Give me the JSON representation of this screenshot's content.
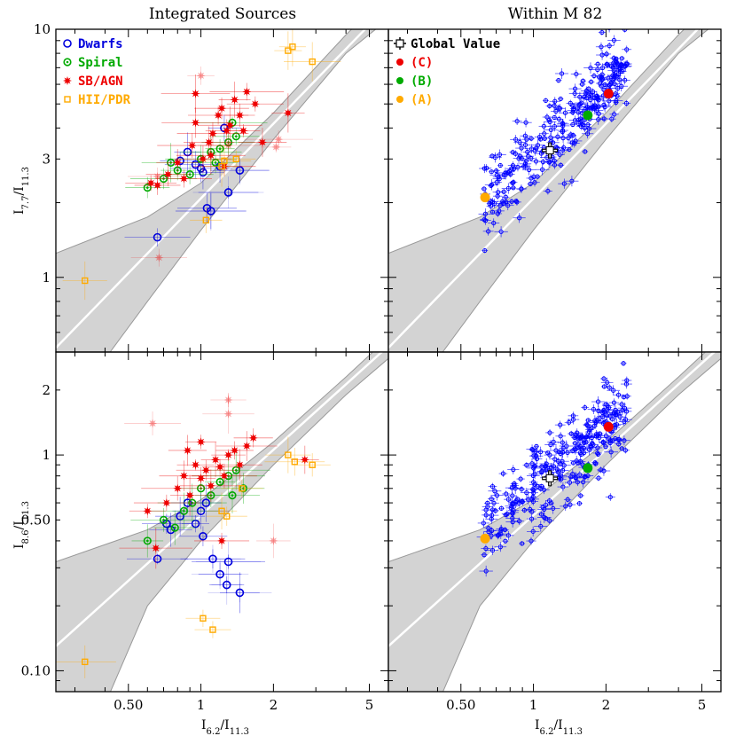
{
  "chart_data": [
    {
      "type": "scatter",
      "title": "Integrated Sources",
      "xlabel": "",
      "ylabel": "I7.7/I11.3",
      "x_scale": "log",
      "y_scale": "log",
      "xlim": [
        0.25,
        6.0
      ],
      "ylim": [
        0.5,
        10.0
      ],
      "x_ticks": [],
      "y_ticks": [
        {
          "value": 1,
          "label": "1"
        },
        {
          "value": 3,
          "label": "3"
        },
        {
          "value": 10,
          "label": "10"
        }
      ],
      "band": {
        "center": [
          [
            0.25,
            0.52
          ],
          [
            6.0,
            12.5
          ]
        ],
        "upper": [
          [
            0.25,
            1.25
          ],
          [
            0.6,
            1.75
          ],
          [
            1.0,
            2.4
          ],
          [
            2.0,
            4.6
          ],
          [
            4.0,
            9.5
          ],
          [
            6.0,
            14.0
          ]
        ],
        "lower": [
          [
            0.42,
            0.5
          ],
          [
            0.6,
            0.8
          ],
          [
            1.0,
            1.55
          ],
          [
            2.0,
            3.6
          ],
          [
            4.0,
            8.0
          ],
          [
            6.0,
            11.0
          ]
        ]
      },
      "legend": {
        "position": "top-left",
        "entries": [
          {
            "label": "Dwarfs",
            "color": "#0000dd",
            "marker": "open-circle"
          },
          {
            "label": "Spiral",
            "color": "#00aa00",
            "marker": "circle-dot"
          },
          {
            "label": "SB/AGN",
            "color": "#ee0000",
            "marker": "star"
          },
          {
            "label": "HII/PDR",
            "color": "#ffaa00",
            "marker": "open-square"
          }
        ]
      },
      "series": [
        {
          "name": "Dwarfs",
          "color": "#0000dd",
          "marker": "open-circle",
          "points": [
            [
              0.88,
              3.2
            ],
            [
              0.82,
              2.95
            ],
            [
              0.95,
              2.85
            ],
            [
              1.02,
              2.65
            ],
            [
              1.0,
              2.75
            ],
            [
              1.06,
              1.9
            ],
            [
              0.66,
              1.45
            ],
            [
              1.2,
              2.8
            ],
            [
              1.3,
              2.2
            ],
            [
              1.45,
              2.7
            ],
            [
              1.1,
              1.85
            ],
            [
              1.25,
              4.0
            ]
          ],
          "faint": [
            [
              1.3,
              2.2
            ],
            [
              1.45,
              2.7
            ],
            [
              1.1,
              1.85
            ]
          ]
        },
        {
          "name": "Spiral",
          "color": "#00aa00",
          "marker": "circle-dot",
          "points": [
            [
              0.6,
              2.3
            ],
            [
              0.7,
              2.5
            ],
            [
              0.8,
              2.7
            ],
            [
              0.9,
              2.6
            ],
            [
              1.0,
              3.0
            ],
            [
              1.1,
              3.2
            ],
            [
              1.2,
              3.3
            ],
            [
              1.3,
              3.5
            ],
            [
              1.4,
              3.7
            ],
            [
              1.35,
              4.2
            ],
            [
              1.15,
              2.9
            ],
            [
              0.75,
              2.9
            ]
          ]
        },
        {
          "name": "SB/AGN",
          "color": "#ee0000",
          "marker": "star",
          "points": [
            [
              0.62,
              2.4
            ],
            [
              0.66,
              2.35
            ],
            [
              0.73,
              2.6
            ],
            [
              0.8,
              2.9
            ],
            [
              0.85,
              2.5
            ],
            [
              0.92,
              3.4
            ],
            [
              0.95,
              4.2
            ],
            [
              1.02,
              3.0
            ],
            [
              1.08,
              3.5
            ],
            [
              1.12,
              3.8
            ],
            [
              1.18,
              4.5
            ],
            [
              1.22,
              4.8
            ],
            [
              1.28,
              3.9
            ],
            [
              1.32,
              4.1
            ],
            [
              1.38,
              5.2
            ],
            [
              1.45,
              4.5
            ],
            [
              1.5,
              3.9
            ],
            [
              1.55,
              5.6
            ],
            [
              1.68,
              5.0
            ],
            [
              1.8,
              3.5
            ],
            [
              2.3,
              4.6
            ],
            [
              0.95,
              5.5
            ],
            [
              1.1,
              3.1
            ],
            [
              1.25,
              2.8
            ]
          ],
          "faint": [
            [
              1.0,
              6.5
            ],
            [
              2.05,
              3.35
            ],
            [
              0.67,
              1.2
            ],
            [
              1.3,
              3.4
            ],
            [
              0.66,
              2.55
            ],
            [
              2.1,
              3.6
            ]
          ]
        },
        {
          "name": "HII/PDR",
          "color": "#ffaa00",
          "marker": "open-square",
          "points": [
            [
              0.33,
              0.97
            ],
            [
              1.05,
              1.7
            ],
            [
              2.4,
              8.5
            ],
            [
              2.9,
              7.4
            ],
            [
              2.3,
              8.2
            ],
            [
              1.22,
              2.8
            ],
            [
              1.25,
              2.95
            ],
            [
              1.4,
              3.0
            ]
          ]
        }
      ]
    },
    {
      "type": "scatter",
      "title": "Within M 82",
      "xlabel": "",
      "ylabel": "",
      "x_scale": "log",
      "y_scale": "log",
      "xlim": [
        0.25,
        6.0
      ],
      "ylim": [
        0.5,
        10.0
      ],
      "band": {
        "center": [
          [
            0.25,
            0.52
          ],
          [
            6.0,
            12.5
          ]
        ],
        "upper": [
          [
            0.25,
            1.25
          ],
          [
            0.6,
            1.75
          ],
          [
            1.0,
            2.4
          ],
          [
            2.0,
            4.6
          ],
          [
            4.0,
            9.5
          ],
          [
            6.0,
            14.0
          ]
        ],
        "lower": [
          [
            0.42,
            0.5
          ],
          [
            0.6,
            0.8
          ],
          [
            1.0,
            1.55
          ],
          [
            2.0,
            3.6
          ],
          [
            4.0,
            8.0
          ],
          [
            6.0,
            11.0
          ]
        ]
      },
      "legend": {
        "position": "top-left",
        "entries": [
          {
            "label": "Global Value",
            "color": "#000000",
            "marker": "open-square"
          },
          {
            "label": "(C)",
            "color": "#ee0000",
            "marker": "filled-circle"
          },
          {
            "label": "(B)",
            "color": "#00aa00",
            "marker": "filled-circle"
          },
          {
            "label": "(A)",
            "color": "#ffaa00",
            "marker": "filled-circle"
          }
        ]
      },
      "cloud": {
        "color": "#0000ff",
        "x_range": [
          0.62,
          2.45
        ],
        "center_line": [
          [
            0.62,
            2.1
          ],
          [
            1.0,
            3.0
          ],
          [
            1.5,
            4.5
          ],
          [
            2.0,
            5.8
          ],
          [
            2.4,
            7.2
          ]
        ],
        "scatter": 0.16,
        "count": 300
      },
      "highlights": [
        {
          "label": "Global Value",
          "x": 1.17,
          "y": 3.25,
          "color": "#000000"
        },
        {
          "label": "(C)",
          "x": 2.05,
          "y": 5.5,
          "color": "#ee0000"
        },
        {
          "label": "(B)",
          "x": 1.68,
          "y": 4.5,
          "color": "#00aa00"
        },
        {
          "label": "(A)",
          "x": 0.63,
          "y": 2.1,
          "color": "#ffaa00"
        }
      ]
    },
    {
      "type": "scatter",
      "title": "",
      "xlabel": "I6.2/I11.3",
      "ylabel": "I8.6/I11.3",
      "x_scale": "log",
      "y_scale": "log",
      "xlim": [
        0.25,
        6.0
      ],
      "ylim": [
        0.08,
        3.0
      ],
      "x_ticks": [
        {
          "value": 0.5,
          "label": "0.50"
        },
        {
          "value": 1,
          "label": "1"
        },
        {
          "value": 2,
          "label": "2"
        },
        {
          "value": 5,
          "label": "5"
        }
      ],
      "y_ticks": [
        {
          "value": 0.1,
          "label": "0.10"
        },
        {
          "value": 0.5,
          "label": "0.50"
        },
        {
          "value": 1,
          "label": "1"
        },
        {
          "value": 2,
          "label": "2"
        }
      ],
      "band": {
        "center": [
          [
            0.25,
            0.13
          ],
          [
            6.0,
            3.2
          ]
        ],
        "upper": [
          [
            0.25,
            0.32
          ],
          [
            0.6,
            0.45
          ],
          [
            1.0,
            0.62
          ],
          [
            2.0,
            1.15
          ],
          [
            4.0,
            2.3
          ],
          [
            6.0,
            3.5
          ]
        ],
        "lower": [
          [
            0.4,
            0.07
          ],
          [
            0.6,
            0.2
          ],
          [
            1.0,
            0.4
          ],
          [
            2.0,
            0.9
          ],
          [
            4.0,
            1.9
          ],
          [
            6.0,
            2.8
          ]
        ]
      },
      "series": [
        {
          "name": "Dwarfs",
          "color": "#0000dd",
          "marker": "open-circle",
          "points": [
            [
              0.66,
              0.33
            ],
            [
              0.75,
              0.45
            ],
            [
              0.82,
              0.52
            ],
            [
              0.88,
              0.6
            ],
            [
              0.95,
              0.48
            ],
            [
              1.0,
              0.55
            ],
            [
              1.05,
              0.6
            ],
            [
              1.02,
              0.42
            ],
            [
              0.72,
              0.48
            ],
            [
              1.12,
              0.33
            ],
            [
              1.2,
              0.28
            ],
            [
              1.28,
              0.25
            ],
            [
              1.45,
              0.23
            ],
            [
              1.3,
              0.32
            ]
          ],
          "faint": [
            [
              1.12,
              0.33
            ],
            [
              1.2,
              0.28
            ],
            [
              1.28,
              0.25
            ],
            [
              1.45,
              0.23
            ],
            [
              1.3,
              0.32
            ]
          ]
        },
        {
          "name": "Spiral",
          "color": "#00aa00",
          "marker": "circle-dot",
          "points": [
            [
              0.6,
              0.4
            ],
            [
              0.7,
              0.5
            ],
            [
              0.78,
              0.46
            ],
            [
              0.85,
              0.55
            ],
            [
              0.92,
              0.6
            ],
            [
              1.0,
              0.7
            ],
            [
              1.1,
              0.65
            ],
            [
              1.2,
              0.75
            ],
            [
              1.3,
              0.8
            ],
            [
              1.4,
              0.85
            ],
            [
              1.5,
              0.7
            ],
            [
              1.35,
              0.65
            ]
          ]
        },
        {
          "name": "SB/AGN",
          "color": "#ee0000",
          "marker": "star",
          "points": [
            [
              0.6,
              0.55
            ],
            [
              0.65,
              0.37
            ],
            [
              0.72,
              0.6
            ],
            [
              0.8,
              0.7
            ],
            [
              0.85,
              0.8
            ],
            [
              0.9,
              0.65
            ],
            [
              0.95,
              0.9
            ],
            [
              1.0,
              0.78
            ],
            [
              1.05,
              0.85
            ],
            [
              1.1,
              0.72
            ],
            [
              1.15,
              0.95
            ],
            [
              1.2,
              0.88
            ],
            [
              1.25,
              0.8
            ],
            [
              1.3,
              1.0
            ],
            [
              1.38,
              1.05
            ],
            [
              1.45,
              0.9
            ],
            [
              1.55,
              1.1
            ],
            [
              1.65,
              1.2
            ],
            [
              0.88,
              1.05
            ],
            [
              1.0,
              1.15
            ],
            [
              2.7,
              0.95
            ],
            [
              1.22,
              0.4
            ]
          ],
          "faint": [
            [
              0.63,
              1.4
            ],
            [
              1.3,
              1.8
            ],
            [
              2.0,
              0.4
            ],
            [
              1.3,
              1.55
            ]
          ]
        },
        {
          "name": "HII/PDR",
          "color": "#ffaa00",
          "marker": "open-square",
          "points": [
            [
              0.33,
              0.11
            ],
            [
              1.02,
              0.175
            ],
            [
              1.12,
              0.155
            ],
            [
              2.3,
              1.0
            ],
            [
              2.9,
              0.9
            ],
            [
              2.45,
              0.93
            ],
            [
              1.22,
              0.55
            ],
            [
              1.28,
              0.52
            ],
            [
              1.48,
              0.7
            ]
          ]
        }
      ]
    },
    {
      "type": "scatter",
      "title": "",
      "xlabel": "I6.2/I11.3",
      "ylabel": "",
      "x_scale": "log",
      "y_scale": "log",
      "xlim": [
        0.25,
        6.0
      ],
      "ylim": [
        0.08,
        3.0
      ],
      "x_ticks": [
        {
          "value": 0.5,
          "label": "0.50"
        },
        {
          "value": 1,
          "label": "1"
        },
        {
          "value": 2,
          "label": "2"
        },
        {
          "value": 5,
          "label": "5"
        }
      ],
      "band": {
        "center": [
          [
            0.25,
            0.13
          ],
          [
            6.0,
            3.2
          ]
        ],
        "upper": [
          [
            0.25,
            0.32
          ],
          [
            0.6,
            0.45
          ],
          [
            1.0,
            0.62
          ],
          [
            2.0,
            1.15
          ],
          [
            4.0,
            2.3
          ],
          [
            6.0,
            3.5
          ]
        ],
        "lower": [
          [
            0.4,
            0.07
          ],
          [
            0.6,
            0.2
          ],
          [
            1.0,
            0.4
          ],
          [
            2.0,
            0.9
          ],
          [
            4.0,
            1.9
          ],
          [
            6.0,
            2.8
          ]
        ]
      },
      "cloud": {
        "color": "#0000ff",
        "x_range": [
          0.62,
          2.45
        ],
        "center_line": [
          [
            0.62,
            0.48
          ],
          [
            1.0,
            0.72
          ],
          [
            1.5,
            1.0
          ],
          [
            2.0,
            1.3
          ],
          [
            2.4,
            1.6
          ]
        ],
        "scatter": 0.2,
        "count": 300
      },
      "highlights": [
        {
          "label": "Global Value",
          "x": 1.17,
          "y": 0.78,
          "color": "#000000"
        },
        {
          "label": "(C)",
          "x": 2.05,
          "y": 1.35,
          "color": "#ee0000"
        },
        {
          "label": "(B)",
          "x": 1.68,
          "y": 0.87,
          "color": "#00aa00"
        },
        {
          "label": "(A)",
          "x": 0.63,
          "y": 0.41,
          "color": "#ffaa00"
        }
      ]
    }
  ]
}
